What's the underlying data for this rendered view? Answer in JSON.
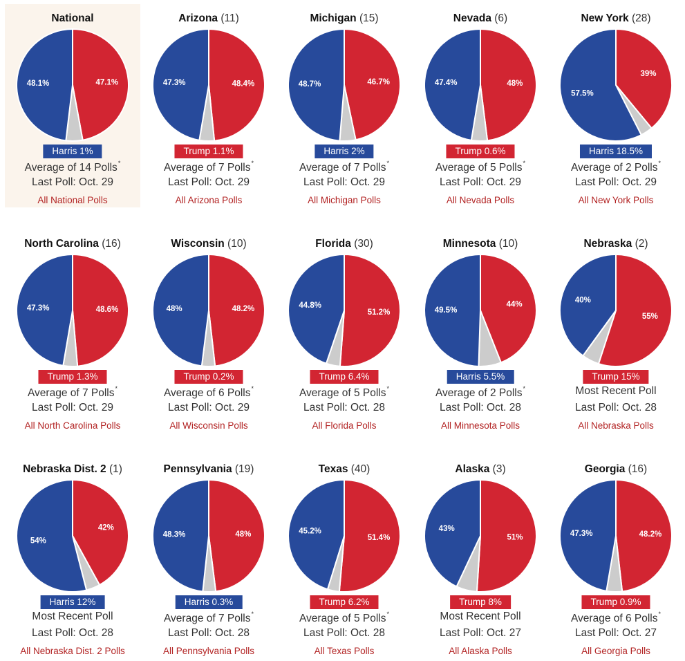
{
  "colors": {
    "harris": "#274a9b",
    "trump": "#d22532",
    "other": "#cccccc",
    "highlight_bg": "#fbf4ec",
    "link": "#b22222"
  },
  "chart_data": [
    {
      "type": "pie",
      "name": "National",
      "ev": "",
      "harris": 48.1,
      "trump": 47.1,
      "leader": "dem",
      "margin": "Harris 1%",
      "poll_summary": "Average of 14 Polls",
      "asterisk": "*",
      "last_poll": "Last Poll: Oct. 29",
      "link": "All National Polls",
      "highlight": true
    },
    {
      "type": "pie",
      "name": "Arizona",
      "ev": "(11)",
      "harris": 47.3,
      "trump": 48.4,
      "leader": "rep",
      "margin": "Trump 1.1%",
      "poll_summary": "Average of 7 Polls",
      "asterisk": "*",
      "last_poll": "Last Poll: Oct. 29",
      "link": "All Arizona Polls"
    },
    {
      "type": "pie",
      "name": "Michigan",
      "ev": "(15)",
      "harris": 48.7,
      "trump": 46.7,
      "leader": "dem",
      "margin": "Harris 2%",
      "poll_summary": "Average of 7 Polls",
      "asterisk": "*",
      "last_poll": "Last Poll: Oct. 29",
      "link": "All Michigan Polls"
    },
    {
      "type": "pie",
      "name": "Nevada",
      "ev": "(6)",
      "harris": 47.4,
      "trump": 48,
      "leader": "rep",
      "margin": "Trump 0.6%",
      "poll_summary": "Average of 5 Polls",
      "asterisk": "*",
      "last_poll": "Last Poll: Oct. 29",
      "link": "All Nevada Polls"
    },
    {
      "type": "pie",
      "name": "New York",
      "ev": "(28)",
      "harris": 57.5,
      "trump": 39,
      "leader": "dem",
      "margin": "Harris 18.5%",
      "poll_summary": "Average of 2 Polls",
      "asterisk": "*",
      "last_poll": "Last Poll: Oct. 29",
      "link": "All New York Polls"
    },
    {
      "type": "pie",
      "name": "North Carolina",
      "ev": "(16)",
      "harris": 47.3,
      "trump": 48.6,
      "leader": "rep",
      "margin": "Trump 1.3%",
      "poll_summary": "Average of 7 Polls",
      "asterisk": "*",
      "last_poll": "Last Poll: Oct. 29",
      "link": "All North Carolina Polls"
    },
    {
      "type": "pie",
      "name": "Wisconsin",
      "ev": "(10)",
      "harris": 48,
      "trump": 48.2,
      "leader": "rep",
      "margin": "Trump 0.2%",
      "poll_summary": "Average of 6 Polls",
      "asterisk": "*",
      "last_poll": "Last Poll: Oct. 29",
      "link": "All Wisconsin Polls"
    },
    {
      "type": "pie",
      "name": "Florida",
      "ev": "(30)",
      "harris": 44.8,
      "trump": 51.2,
      "leader": "rep",
      "margin": "Trump 6.4%",
      "poll_summary": "Average of 5 Polls",
      "asterisk": "*",
      "last_poll": "Last Poll: Oct. 28",
      "link": "All Florida Polls"
    },
    {
      "type": "pie",
      "name": "Minnesota",
      "ev": "(10)",
      "harris": 49.5,
      "trump": 44,
      "leader": "dem",
      "margin": "Harris 5.5%",
      "poll_summary": "Average of 2 Polls",
      "asterisk": "*",
      "last_poll": "Last Poll: Oct. 28",
      "link": "All Minnesota Polls"
    },
    {
      "type": "pie",
      "name": "Nebraska",
      "ev": "(2)",
      "harris": 40,
      "trump": 55,
      "leader": "rep",
      "margin": "Trump 15%",
      "poll_summary": "Most Recent Poll",
      "asterisk": "",
      "last_poll": "Last Poll: Oct. 28",
      "link": "All Nebraska Polls"
    },
    {
      "type": "pie",
      "name": "Nebraska Dist. 2",
      "ev": "(1)",
      "harris": 54,
      "trump": 42,
      "leader": "dem",
      "margin": "Harris 12%",
      "poll_summary": "Most Recent Poll",
      "asterisk": "",
      "last_poll": "Last Poll: Oct. 28",
      "link": "All Nebraska Dist. 2 Polls"
    },
    {
      "type": "pie",
      "name": "Pennsylvania",
      "ev": "(19)",
      "harris": 48.3,
      "trump": 48,
      "leader": "dem",
      "margin": "Harris 0.3%",
      "poll_summary": "Average of 7 Polls",
      "asterisk": "*",
      "last_poll": "Last Poll: Oct. 28",
      "link": "All Pennsylvania Polls"
    },
    {
      "type": "pie",
      "name": "Texas",
      "ev": "(40)",
      "harris": 45.2,
      "trump": 51.4,
      "leader": "rep",
      "margin": "Trump 6.2%",
      "poll_summary": "Average of 5 Polls",
      "asterisk": "*",
      "last_poll": "Last Poll: Oct. 28",
      "link": "All Texas Polls"
    },
    {
      "type": "pie",
      "name": "Alaska",
      "ev": "(3)",
      "harris": 43,
      "trump": 51,
      "leader": "rep",
      "margin": "Trump 8%",
      "poll_summary": "Most Recent Poll",
      "asterisk": "",
      "last_poll": "Last Poll: Oct. 27",
      "link": "All Alaska Polls"
    },
    {
      "type": "pie",
      "name": "Georgia",
      "ev": "(16)",
      "harris": 47.3,
      "trump": 48.2,
      "leader": "rep",
      "margin": "Trump 0.9%",
      "poll_summary": "Average of 6 Polls",
      "asterisk": "*",
      "last_poll": "Last Poll: Oct. 27",
      "link": "All Georgia Polls"
    }
  ]
}
